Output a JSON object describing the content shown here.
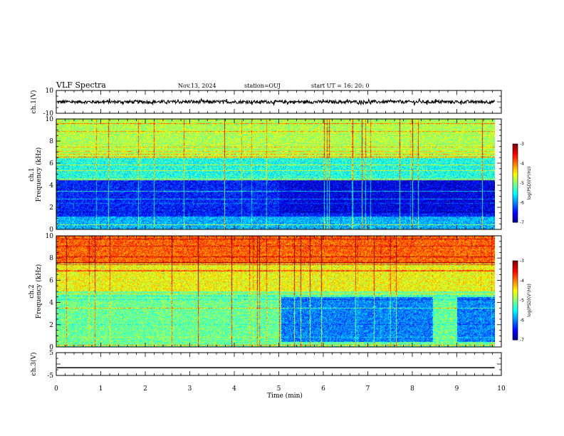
{
  "header": {
    "title": "VLF Spectra",
    "date": "Nov.13, 2024",
    "station": "station=OUJ",
    "start": "start  UT =   16: 20: 0"
  },
  "chart_data": [
    {
      "type": "line",
      "name": "ch1-waveform",
      "ylabel": "ch.1(V)",
      "ylim": [
        -10,
        10
      ],
      "yticks": [
        "10",
        "-10"
      ],
      "offset": 0,
      "amplitude": 1.4
    },
    {
      "type": "heatmap",
      "name": "ch1-spectrogram",
      "ylabel": "Frequency (kHz)",
      "chlabel": "ch.1",
      "ylim": [
        0,
        10
      ],
      "yticks": [
        "0",
        "2",
        "4",
        "6",
        "8",
        "10"
      ],
      "colorbar": {
        "label": "log(PSD)(V²/Hz)",
        "range": [
          -7,
          -3
        ],
        "ticks": [
          "-3",
          "-4",
          "-5",
          "-6",
          "-7"
        ]
      }
    },
    {
      "type": "heatmap",
      "name": "ch2-spectrogram",
      "ylabel": "Frequency (kHz)",
      "chlabel": "ch.2",
      "ylim": [
        0,
        10
      ],
      "yticks": [
        "0",
        "2",
        "4",
        "6",
        "8",
        "10"
      ],
      "colorbar": {
        "label": "log(PSD)(V²/Hz)",
        "range": [
          -7,
          -3
        ],
        "ticks": [
          "-3",
          "-4",
          "-5",
          "-6",
          "-7"
        ]
      }
    },
    {
      "type": "line",
      "name": "ch3-waveform",
      "ylabel": "ch.3(V)",
      "ylim": [
        -5,
        5
      ],
      "yticks": [
        "5",
        "-5"
      ],
      "offset": -1.6,
      "amplitude": 0
    }
  ],
  "xaxis": {
    "label": "Time  (min)",
    "range": [
      0,
      10
    ],
    "ticks": [
      "0",
      "1",
      "2",
      "3",
      "4",
      "5",
      "6",
      "7",
      "8",
      "9",
      "10"
    ],
    "data_end": 9.85
  }
}
